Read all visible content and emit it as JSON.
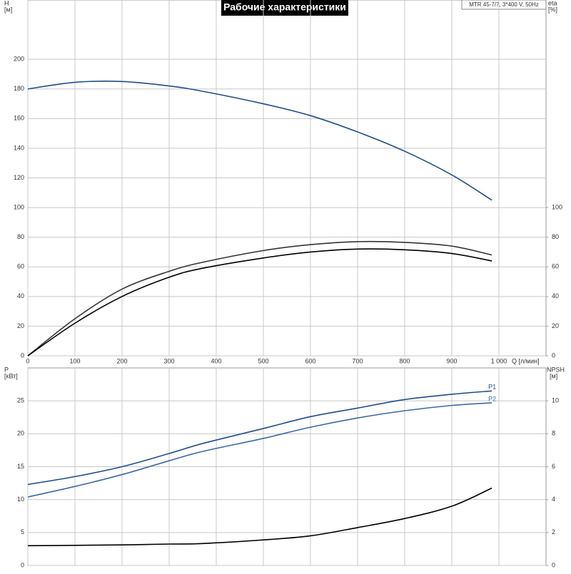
{
  "chart_data": [
    {
      "type": "line",
      "title": "Рабочие характеристики",
      "model": "MTR 45-7/7, 3*400 V, 50Hz",
      "y_label": "H",
      "y_unit": "[м]",
      "y2_label": "eta",
      "y2_unit": "[%]",
      "x_label": "Q [л/мин]",
      "x": [
        0,
        100,
        200,
        300,
        370,
        500,
        600,
        700,
        800,
        900,
        985
      ],
      "series": [
        {
          "color": "#1f4e8c",
          "values": [
            180,
            184.5,
            185,
            182,
            178.5,
            170,
            162,
            151,
            138,
            122,
            105
          ]
        },
        {
          "color": "#333333",
          "axis": "y2",
          "values": [
            0,
            25,
            45,
            57,
            63,
            71,
            75,
            77,
            76.5,
            74,
            68
          ]
        },
        {
          "color": "#000000",
          "axis": "y2",
          "values": [
            0,
            22,
            40,
            53,
            59,
            66,
            70,
            72,
            71.5,
            69,
            64
          ]
        }
      ],
      "xlim": [
        0,
        1100
      ],
      "xticks": [
        0,
        100,
        200,
        300,
        400,
        500,
        600,
        700,
        800,
        900,
        {
          "value": 1000,
          "label": "1 000"
        }
      ],
      "ylim": [
        0,
        240
      ],
      "yticks": [
        0,
        20,
        40,
        60,
        80,
        100,
        120,
        140,
        160,
        180,
        200
      ],
      "y2lim": [
        0,
        240
      ],
      "y2ticks": [
        0,
        20,
        40,
        60,
        80,
        100
      ],
      "grid": true
    },
    {
      "type": "line",
      "y_label": "P",
      "y_unit": "[кВт]",
      "y2_label": "NPSH",
      "y2_unit": "[м]",
      "x": [
        0,
        100,
        200,
        300,
        370,
        500,
        600,
        700,
        800,
        900,
        985
      ],
      "series": [
        {
          "name": "P1",
          "color": "#1f4e8c",
          "values": [
            12.3,
            13.5,
            15,
            17,
            18.5,
            20.8,
            22.6,
            23.9,
            25.2,
            26,
            26.5
          ]
        },
        {
          "name": "P2",
          "color": "#3b6aa8",
          "values": [
            10.4,
            12,
            13.8,
            15.9,
            17.3,
            19.3,
            21,
            22.4,
            23.5,
            24.3,
            24.7
          ]
        },
        {
          "color": "#000000",
          "axis": "y2",
          "values": [
            1.2,
            1.22,
            1.25,
            1.3,
            1.33,
            1.55,
            1.8,
            2.3,
            2.85,
            3.6,
            4.7
          ]
        }
      ],
      "xlim": [
        0,
        1100
      ],
      "xticks": [
        0,
        100,
        200,
        300,
        400,
        500,
        600,
        700,
        800,
        900,
        1000
      ],
      "ylim": [
        0,
        30
      ],
      "yticks": [
        0,
        5,
        10,
        15,
        20,
        25
      ],
      "y2lim": [
        0,
        12
      ],
      "y2ticks": [
        0,
        2,
        4,
        6,
        8,
        10
      ],
      "grid": true
    }
  ]
}
